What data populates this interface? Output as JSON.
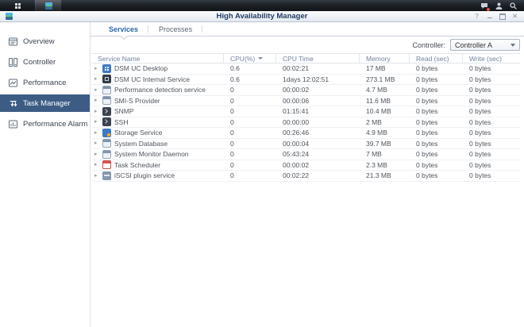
{
  "taskbar": {
    "buttons": [
      {
        "name": "main-menu",
        "icon": "apps-grid-icon"
      },
      {
        "name": "high-availability-manager-app",
        "icon": "ha-manager-icon",
        "active": true
      }
    ],
    "tray": [
      {
        "name": "notifications",
        "icon": "chat-bubble-icon",
        "badge": true,
        "badge_color": "#e04f3f"
      },
      {
        "name": "user-options",
        "icon": "person-icon"
      },
      {
        "name": "search",
        "icon": "magnifier-icon"
      }
    ]
  },
  "window": {
    "title": "High Availability Manager",
    "controls": [
      {
        "name": "help",
        "glyph": "?"
      },
      {
        "name": "minimize",
        "glyph": "minimize"
      },
      {
        "name": "maximize",
        "glyph": "maximize"
      },
      {
        "name": "close",
        "glyph": "✕"
      }
    ]
  },
  "sidebar": {
    "selected_bg": "#3c5c84",
    "items": [
      {
        "label": "Overview",
        "icon": "overview-icon",
        "selected": false
      },
      {
        "label": "Controller",
        "icon": "controller-icon",
        "selected": false
      },
      {
        "label": "Performance",
        "icon": "performance-icon",
        "selected": false
      },
      {
        "label": "Task Manager",
        "icon": "task-manager-icon",
        "selected": true
      },
      {
        "label": "Performance Alarm",
        "icon": "performance-alarm-icon",
        "selected": false
      }
    ]
  },
  "tabs": [
    {
      "label": "Services",
      "active": true
    },
    {
      "label": "Processes",
      "active": false
    }
  ],
  "controller_select": {
    "label": "Controller:",
    "value": "Controller A"
  },
  "table": {
    "columns": [
      "Service Name",
      "CPU(%)",
      "CPU Time",
      "Memory",
      "Read (sec)",
      "Write (sec)"
    ],
    "sorted_column": "CPU(%)",
    "sort_direction": "desc",
    "rows": [
      {
        "icon": "app-grid-icon",
        "name": "DSM UC Desktop",
        "cpu": "0.6",
        "cpu_time": "00:02:21",
        "memory": "17 MB",
        "read": "0 bytes",
        "write": "0 bytes"
      },
      {
        "icon": "dark-app-icon",
        "name": "DSM UC Internal Service",
        "cpu": "0.6",
        "cpu_time": "1days 12:02:51",
        "memory": "273.1 MB",
        "read": "0 bytes",
        "write": "0 bytes"
      },
      {
        "icon": "window-icon",
        "name": "Performance detection service",
        "cpu": "0",
        "cpu_time": "00:00:02",
        "memory": "4.7 MB",
        "read": "0 bytes",
        "write": "0 bytes"
      },
      {
        "icon": "window-icon",
        "name": "SMI-S Provider",
        "cpu": "0",
        "cpu_time": "00:00:06",
        "memory": "11.6 MB",
        "read": "0 bytes",
        "write": "0 bytes"
      },
      {
        "icon": "terminal-icon",
        "name": "SNMP",
        "cpu": "0",
        "cpu_time": "01:15:41",
        "memory": "10.4 MB",
        "read": "0 bytes",
        "write": "0 bytes"
      },
      {
        "icon": "terminal-icon",
        "name": "SSH",
        "cpu": "0",
        "cpu_time": "00:00:00",
        "memory": "2 MB",
        "read": "0 bytes",
        "write": "0 bytes"
      },
      {
        "icon": "storage-icon",
        "name": "Storage Service",
        "cpu": "0",
        "cpu_time": "00:26:46",
        "memory": "4.9 MB",
        "read": "0 bytes",
        "write": "0 bytes"
      },
      {
        "icon": "window-icon",
        "name": "System Database",
        "cpu": "0",
        "cpu_time": "00:00:04",
        "memory": "39.7 MB",
        "read": "0 bytes",
        "write": "0 bytes"
      },
      {
        "icon": "window-icon",
        "name": "System Monitor Daemon",
        "cpu": "0",
        "cpu_time": "05:43:24",
        "memory": "7 MB",
        "read": "0 bytes",
        "write": "0 bytes"
      },
      {
        "icon": "scheduler-icon",
        "name": "Task Scheduler",
        "cpu": "0",
        "cpu_time": "00:00:02",
        "memory": "2.3 MB",
        "read": "0 bytes",
        "write": "0 bytes"
      },
      {
        "icon": "iscsi-icon",
        "name": "iSCSI plugin service",
        "cpu": "0",
        "cpu_time": "00:02:22",
        "memory": "21.3 MB",
        "read": "0 bytes",
        "write": "0 bytes"
      }
    ]
  }
}
